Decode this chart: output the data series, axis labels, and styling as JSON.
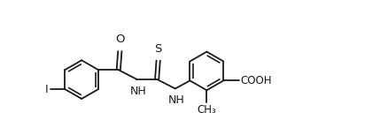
{
  "bg_color": "#ffffff",
  "line_color": "#1a1a1a",
  "line_width": 1.3,
  "fig_width": 4.39,
  "fig_height": 1.53,
  "dpi": 100,
  "xlim": [
    0,
    11
  ],
  "ylim": [
    -2.2,
    2.8
  ]
}
